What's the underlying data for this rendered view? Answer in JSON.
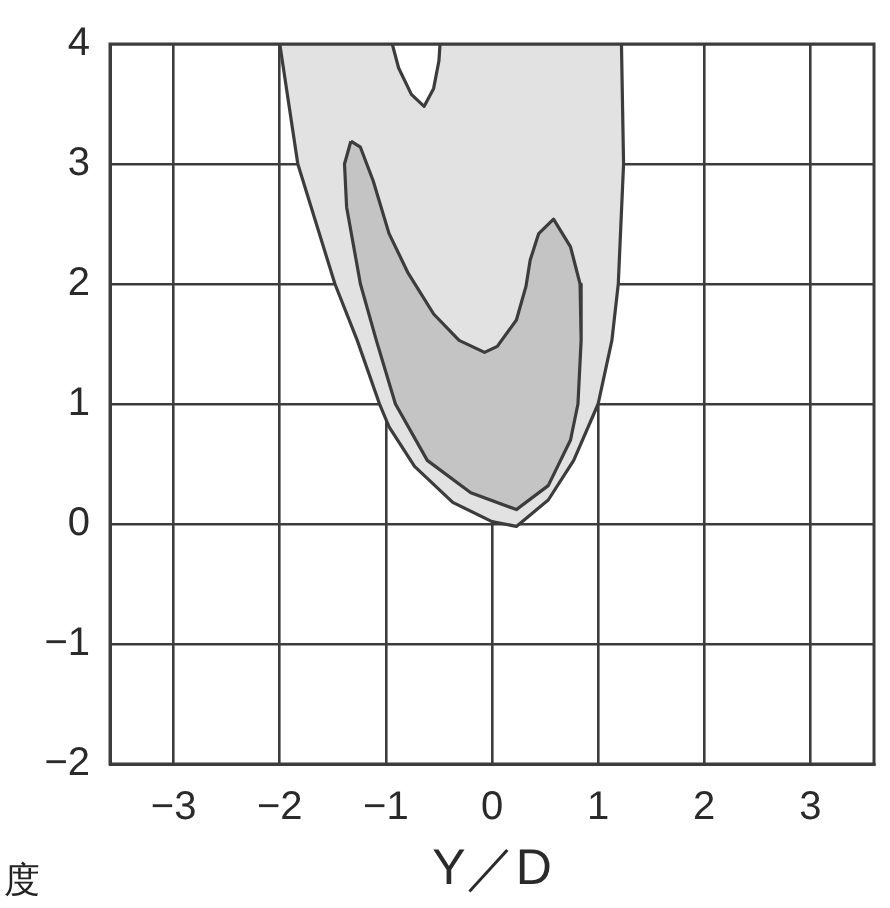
{
  "chart_data": {
    "type": "area",
    "xlabel": "Y／D",
    "annotations": [
      "度"
    ],
    "xlim": [
      -3.6,
      3.6
    ],
    "xticks": [
      -3,
      -2,
      -1,
      0,
      1,
      2,
      3
    ],
    "ylim": [
      -2,
      4
    ],
    "yticks": [
      -2,
      -1,
      0,
      1,
      2,
      3,
      4
    ],
    "grid": true,
    "legend": false,
    "marker": "none",
    "series": [
      {
        "color": "#e2e2e2",
        "x": [
          -2.0,
          -0.94,
          -0.88,
          -0.76,
          -0.64,
          -0.55,
          -0.5,
          -0.49,
          1.22,
          1.24,
          1.19,
          1.13,
          1.0,
          0.77,
          0.53,
          0.23,
          0.0,
          -0.37,
          -0.73,
          -0.97,
          -1.06,
          -1.27,
          -1.48,
          -1.83,
          -2.0
        ],
        "values": [
          4.0,
          4.0,
          3.8,
          3.58,
          3.48,
          3.63,
          3.86,
          4.0,
          4.0,
          3.0,
          2.0,
          1.53,
          1.0,
          0.53,
          0.2,
          -0.02,
          0.02,
          0.18,
          0.48,
          0.81,
          1.0,
          1.53,
          2.0,
          3.0,
          4.0
        ]
      },
      {
        "color": "#c4c4c4",
        "x": [
          -1.33,
          -1.24,
          -1.12,
          -0.97,
          -0.79,
          -0.55,
          -0.31,
          -0.07,
          0.05,
          0.23,
          0.32,
          0.36,
          0.44,
          0.58,
          0.74,
          0.83,
          0.84,
          0.81,
          0.74,
          0.53,
          0.23,
          -0.2,
          -0.61,
          -0.91,
          -1.09,
          -1.24,
          -1.37,
          -1.39,
          -1.33
        ],
        "values": [
          3.19,
          3.14,
          2.86,
          2.42,
          2.09,
          1.75,
          1.53,
          1.43,
          1.48,
          1.7,
          1.98,
          2.2,
          2.42,
          2.54,
          2.31,
          2.0,
          1.53,
          1.0,
          0.7,
          0.32,
          0.12,
          0.26,
          0.53,
          1.0,
          1.53,
          2.0,
          2.64,
          3.0,
          3.19
        ]
      }
    ]
  }
}
